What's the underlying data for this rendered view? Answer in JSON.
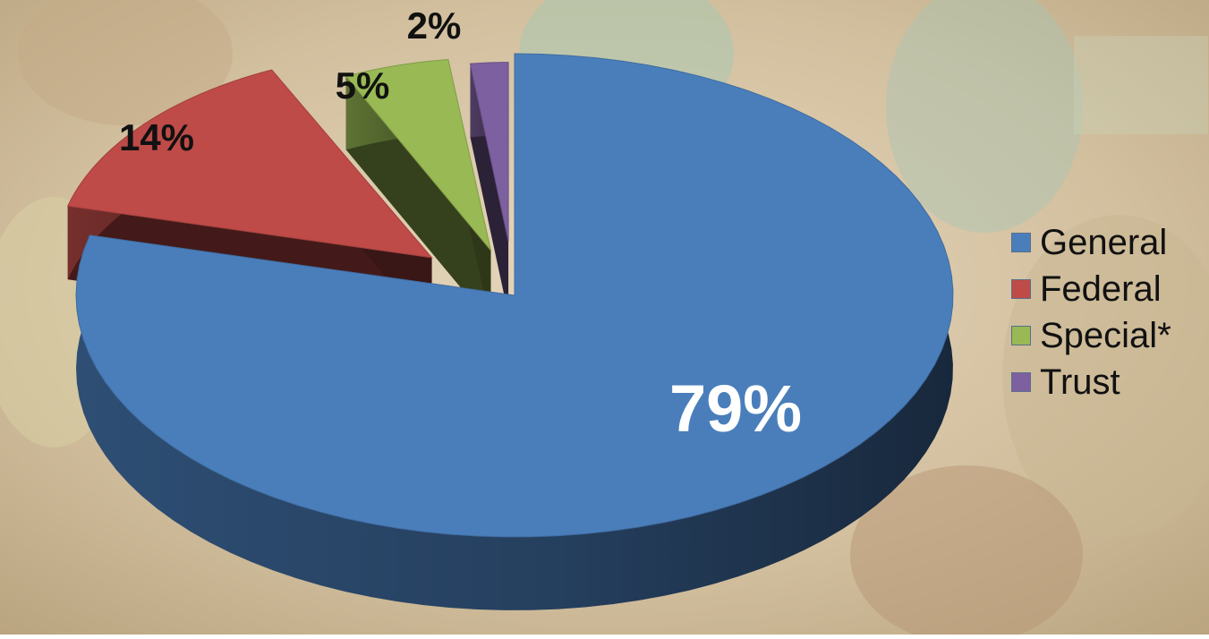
{
  "colors": {
    "General": "#4a7ebb",
    "Federal": "#be4b48",
    "Special*": "#98b954",
    "Trust": "#7d60a0",
    "background_photo": "#cdb99a"
  },
  "chart_data": {
    "type": "pie",
    "style": "3d-exploded",
    "legend_position": "right",
    "slices": [
      {
        "label": "General",
        "value": 79,
        "display": "79%"
      },
      {
        "label": "Federal",
        "value": 14,
        "display": "14%"
      },
      {
        "label": "Special*",
        "value": 5,
        "display": "5%"
      },
      {
        "label": "Trust",
        "value": 2,
        "display": "2%"
      }
    ]
  }
}
